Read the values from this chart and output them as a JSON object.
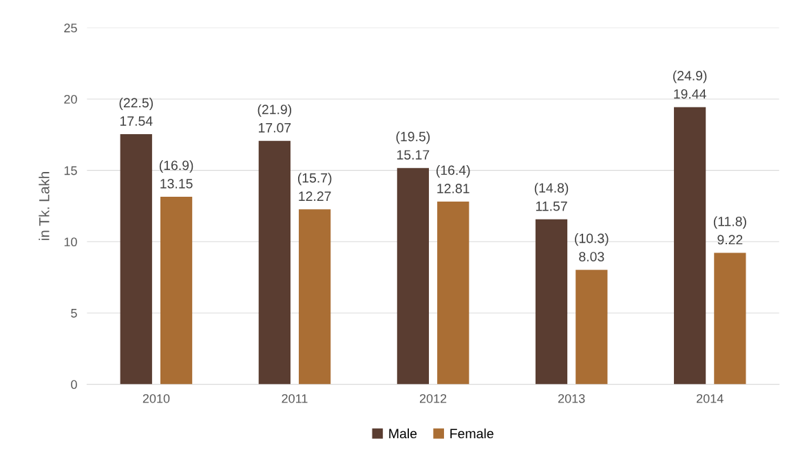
{
  "chart_data": {
    "type": "bar",
    "ylabel": "in Tk. Lakh",
    "categories": [
      "2010",
      "2011",
      "2012",
      "2013",
      "2014"
    ],
    "series": [
      {
        "name": "Male",
        "color": "#5a3d31",
        "values": [
          17.54,
          17.07,
          15.17,
          11.57,
          19.44
        ],
        "value_labels": [
          "(22.5)\n17.54",
          "(21.9)\n17.07",
          "(19.5)\n15.17",
          "(14.8)\n11.57",
          "(24.9)\n19.44"
        ]
      },
      {
        "name": "Female",
        "color": "#aa6e34",
        "values": [
          13.15,
          12.27,
          12.81,
          8.03,
          9.22
        ],
        "value_labels": [
          "(16.9)\n13.15",
          "(15.7)\n12.27",
          "(16.4)\n12.81",
          "(10.3)\n8.03",
          "(11.8)\n9.22"
        ]
      }
    ],
    "ylim": [
      0,
      25
    ],
    "yticks": [
      0,
      5,
      10,
      15,
      20,
      25
    ],
    "grid": "y",
    "legend": "bottom"
  }
}
